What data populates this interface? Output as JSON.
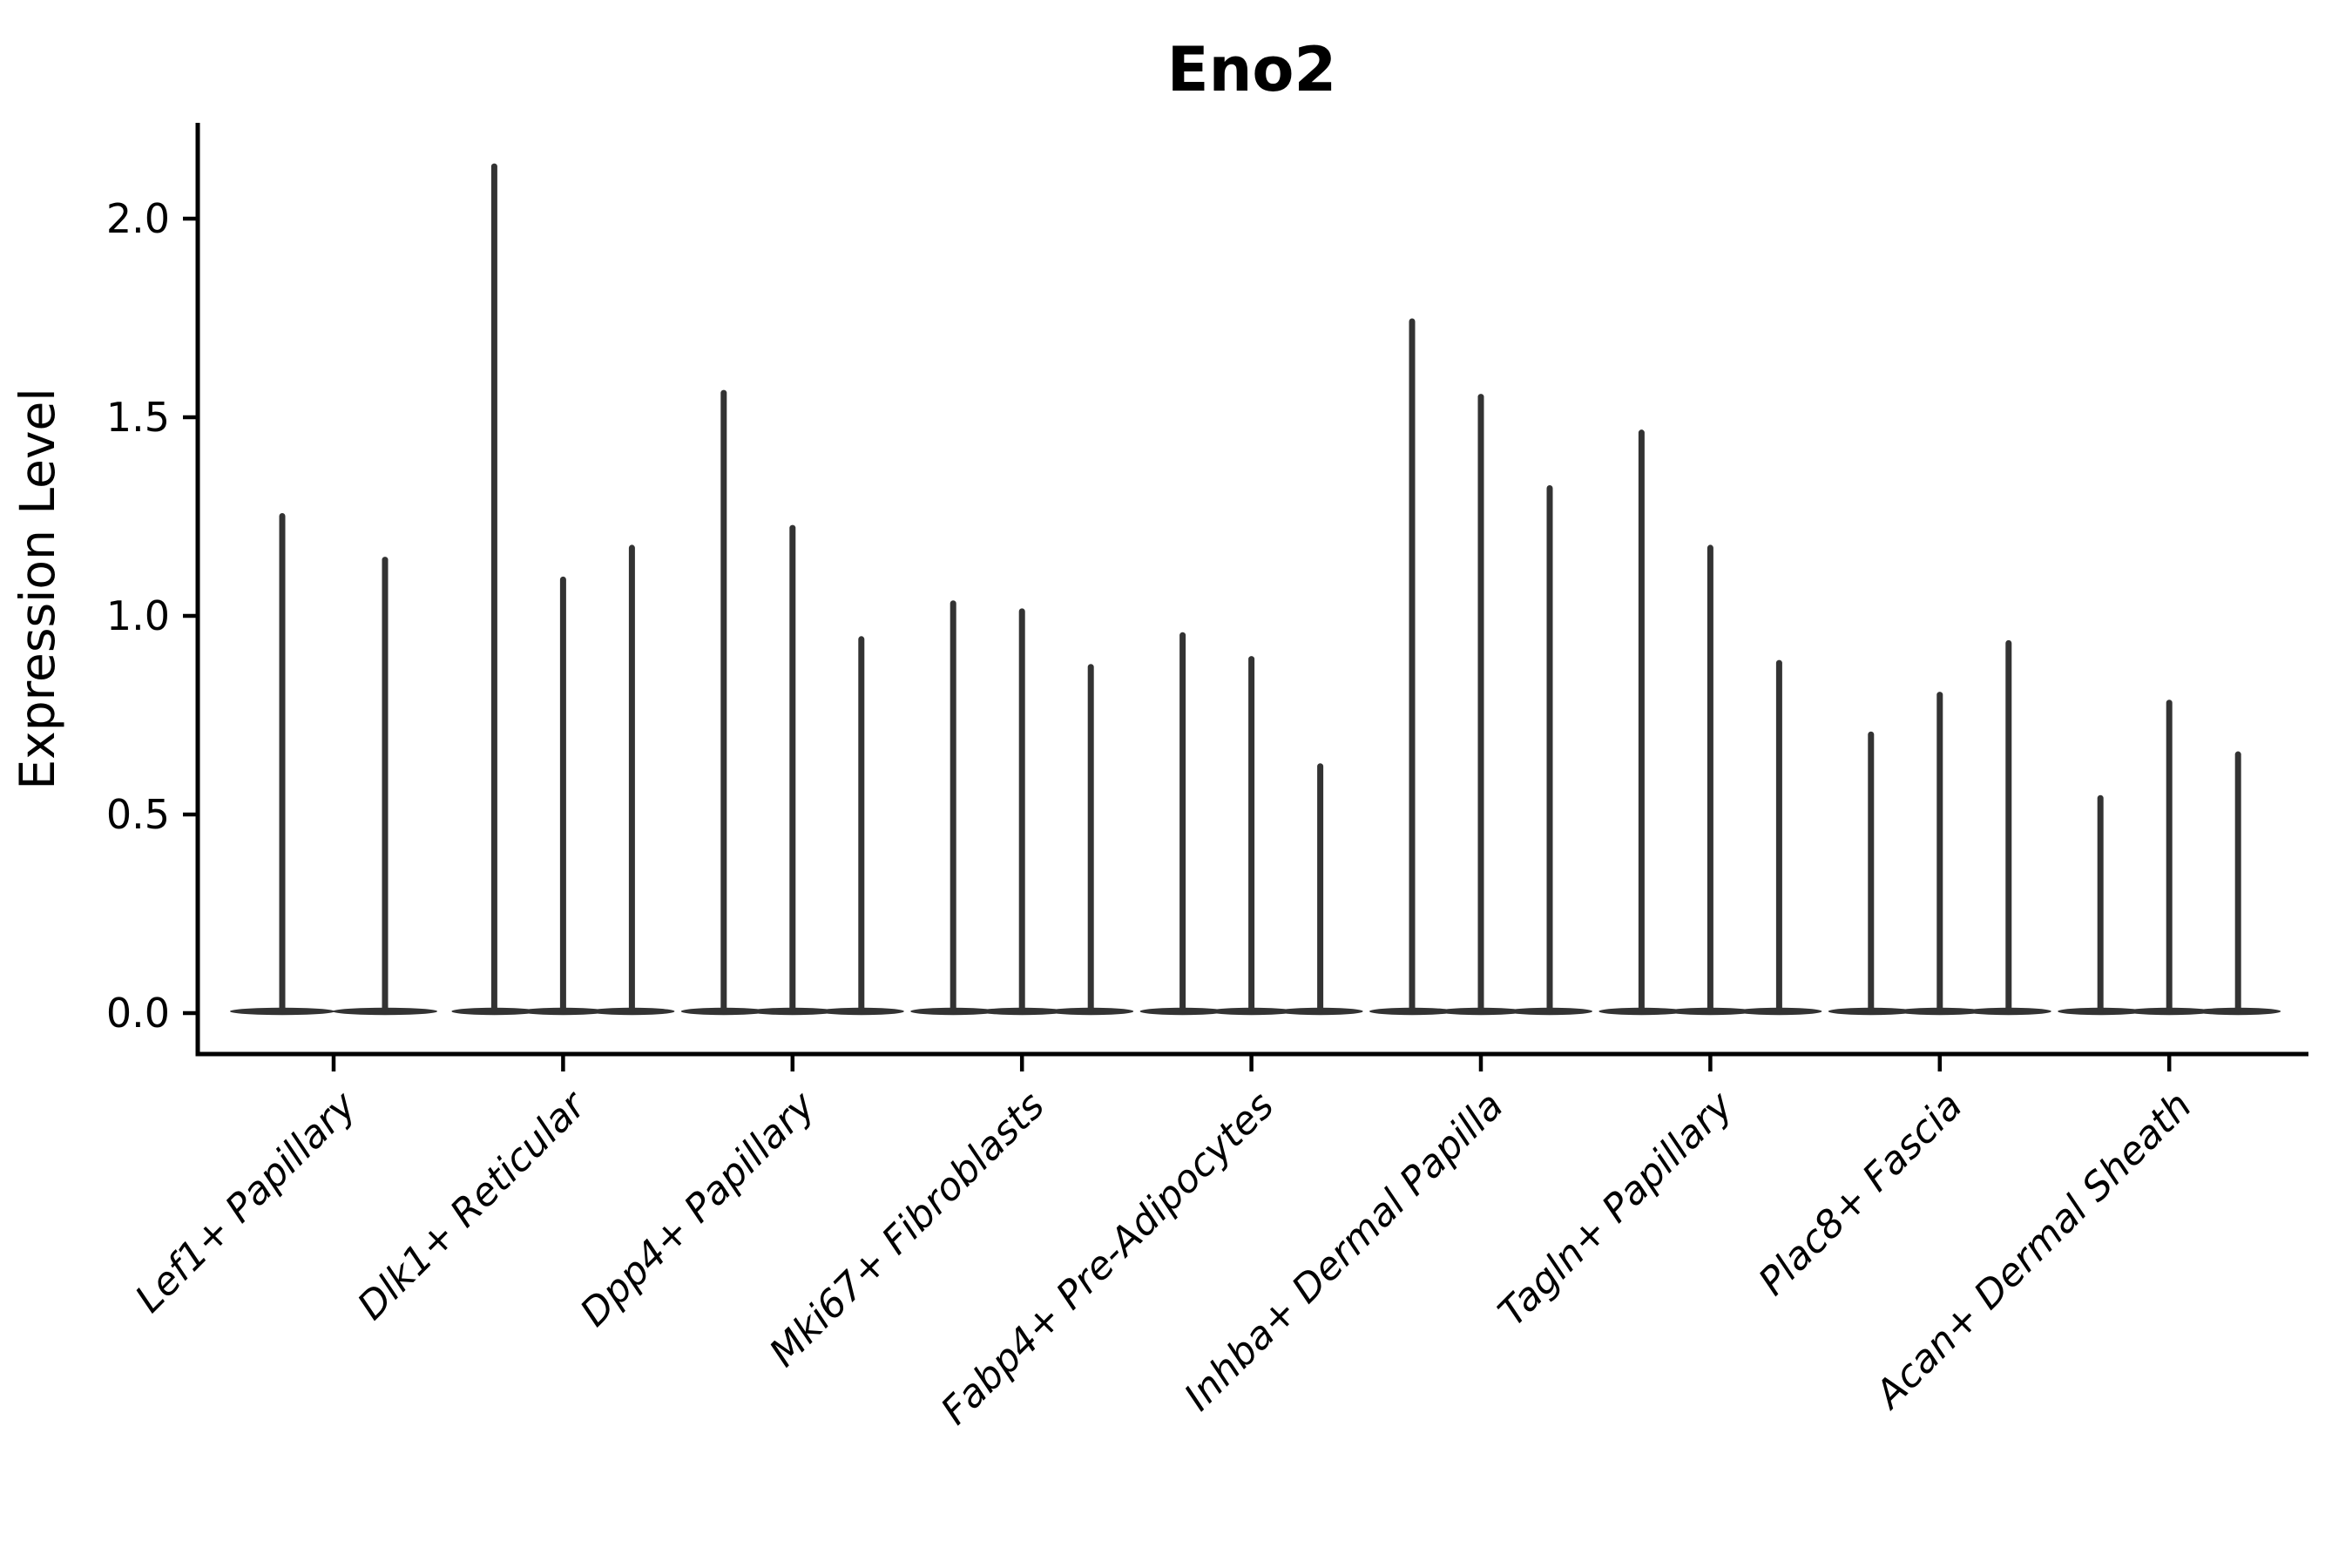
{
  "chart_data": {
    "type": "violin",
    "title": "Eno2",
    "ylabel": "Expression Level",
    "xlabel": "",
    "yticks": [
      0.0,
      0.5,
      1.0,
      1.5,
      2.0
    ],
    "ytick_labels": [
      "0.0",
      "0.5",
      "1.0",
      "1.5",
      "2.0"
    ],
    "ylim": [
      -0.1,
      2.24
    ],
    "grid": false,
    "legend": "none",
    "background": "#ffffff",
    "violin_color": "#333333",
    "axis_color": "#000000",
    "categories": [
      "Lef1+ Papillary",
      "Dlk1+ Reticular",
      "Dpp4+ Papillary",
      "Mki67+ Fibroblasts",
      "Fabp4+ Pre-Adipocytes",
      "Inhba+ Dermal Papilla",
      "Tagln+ Papillary",
      "Plac8+ Fascia",
      "Acan+ Dermal Sheath"
    ],
    "violin_shape_note": "Each violin's density is concentrated at expression 0 (flat wide base) with a very thin tail extending up to the max expression value.",
    "series": [
      {
        "category": "Lef1+ Papillary",
        "violin_max_values": [
          1.26,
          1.15
        ]
      },
      {
        "category": "Dlk1+ Reticular",
        "violin_max_values": [
          2.14,
          1.1,
          1.18
        ]
      },
      {
        "category": "Dpp4+ Papillary",
        "violin_max_values": [
          1.57,
          1.23,
          0.95
        ]
      },
      {
        "category": "Mki67+ Fibroblasts",
        "violin_max_values": [
          1.04,
          1.02,
          0.88
        ]
      },
      {
        "category": "Fabp4+ Pre-Adipocytes",
        "violin_max_values": [
          0.96,
          0.9,
          0.63
        ]
      },
      {
        "category": "Inhba+ Dermal Papilla",
        "violin_max_values": [
          1.75,
          1.56,
          1.33
        ]
      },
      {
        "category": "Tagln+ Papillary",
        "violin_max_values": [
          1.47,
          1.18,
          0.89
        ]
      },
      {
        "category": "Plac8+ Fascia",
        "violin_max_values": [
          0.71,
          0.81,
          0.94
        ]
      },
      {
        "category": "Acan+ Dermal Sheath",
        "violin_max_values": [
          0.55,
          0.79,
          0.66
        ]
      }
    ]
  }
}
